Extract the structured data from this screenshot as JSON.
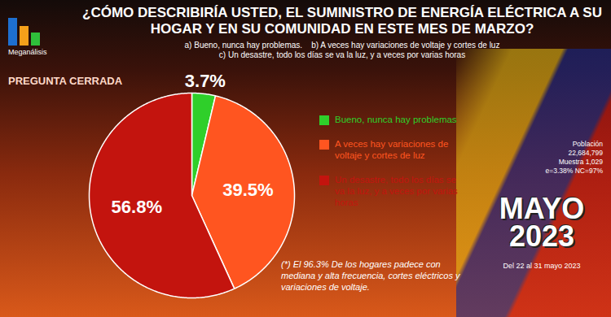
{
  "chart_data": {
    "type": "pie",
    "title": "¿CÓMO DESCRIBIRÍA USTED, EL SUMINISTRO DE ENERGÍA ELÉCTRICA A SU HOGAR Y EN SU COMUNIDAD EN ESTE MES DE MARZO?",
    "subtitle": [
      "a) Bueno, nunca hay problemas.    b) A veces hay variaciones de voltaje y cortes de luz",
      "c) Un desastre, todo los días se va la luz, y a veces por varias horas"
    ],
    "question_type": "PREGUNTA CERRADA",
    "categories": [
      "Bueno, nunca hay problemas",
      "A veces hay variaciones de voltaje y cortes de luz",
      "Un desastre, todo los días se va la luz, y a veces por varias horas"
    ],
    "values": [
      3.7,
      39.5,
      56.8
    ],
    "value_labels": [
      "3.7%",
      "39.5%",
      "56.8%"
    ],
    "colors": [
      "#2fcf2a",
      "#ff5520",
      "#c3140e"
    ],
    "data_labels": true,
    "legend": "right",
    "tick_labels": false,
    "annotation": "(*) El 96.3% De los hogares padece con mediana y alta frecuencia, cortes eléctricos y variaciones de voltaje.",
    "source": "Meganálisis",
    "sample_info": [
      "Población",
      "22,684,799",
      "Muestra 1,029",
      "e=3.38% NC=97%"
    ],
    "period": [
      "MAYO",
      "2023"
    ],
    "dates": "Del 22 al 31 mayo 2023"
  }
}
